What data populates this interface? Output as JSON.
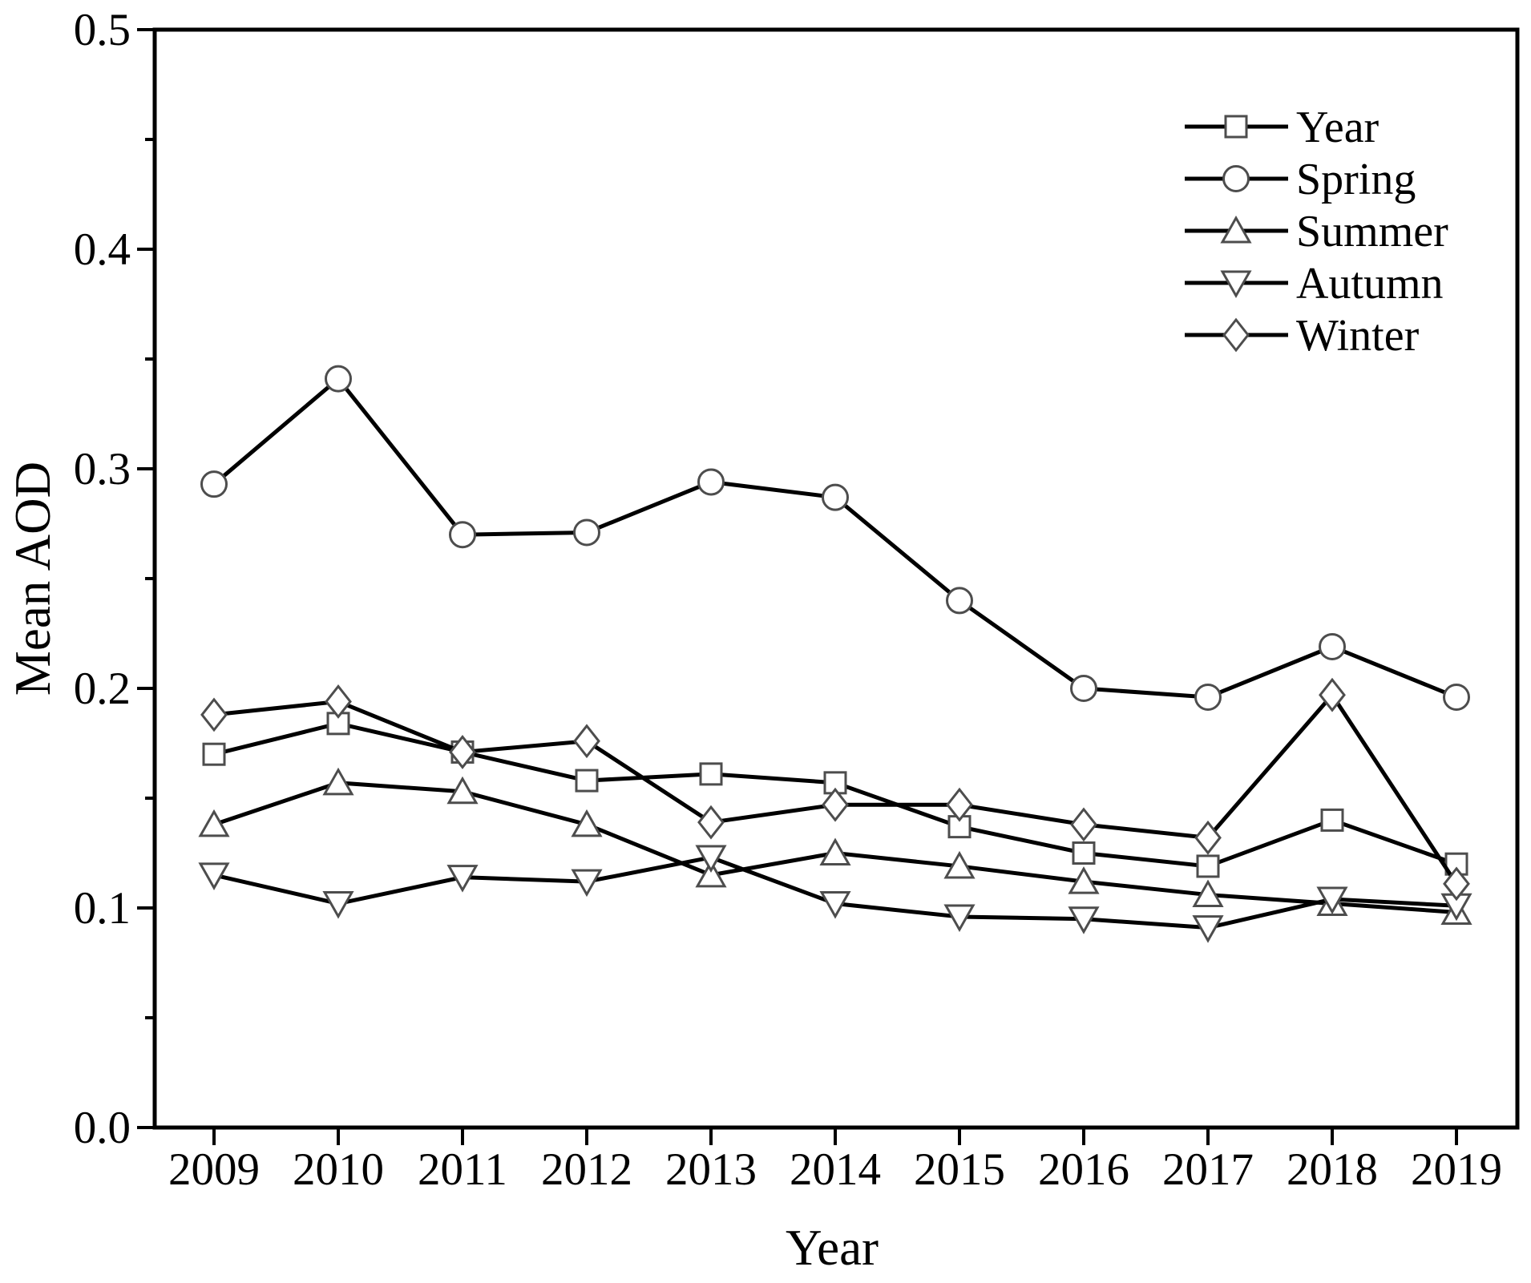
{
  "figure": {
    "background": "#ffffff",
    "line_color": "#000000",
    "marker_fill": "#ffffff",
    "marker_edge_color": "#4d4d4d",
    "text_color": "#000000"
  },
  "chart_data": {
    "type": "line",
    "title": "",
    "xlabel": "Year",
    "ylabel": "Mean AOD",
    "x": [
      2009,
      2010,
      2011,
      2012,
      2013,
      2014,
      2015,
      2016,
      2017,
      2018,
      2019
    ],
    "x_tick_labels": [
      "2009",
      "2010",
      "2011",
      "2012",
      "2013",
      "2014",
      "2015",
      "2016",
      "2017",
      "2018",
      "2019"
    ],
    "ylim": [
      0.0,
      0.5
    ],
    "y_major_ticks": [
      0.0,
      0.1,
      0.2,
      0.3,
      0.4,
      0.5
    ],
    "y_tick_labels": [
      "0.0",
      "0.1",
      "0.2",
      "0.3",
      "0.4",
      "0.5"
    ],
    "y_minor_ticks": [
      0.05,
      0.15,
      0.25,
      0.35,
      0.45
    ],
    "grid": false,
    "legend_position": "upper-right-inside",
    "legend_frame": false,
    "series": [
      {
        "name": "Year",
        "marker": "square",
        "values": [
          0.17,
          0.184,
          0.171,
          0.158,
          0.161,
          0.157,
          0.137,
          0.125,
          0.119,
          0.14,
          0.12
        ]
      },
      {
        "name": "Spring",
        "marker": "circle",
        "values": [
          0.293,
          0.341,
          0.27,
          0.271,
          0.294,
          0.287,
          0.24,
          0.2,
          0.196,
          0.219,
          0.196
        ]
      },
      {
        "name": "Summer",
        "marker": "triangle-up",
        "values": [
          0.138,
          0.157,
          0.153,
          0.138,
          0.115,
          0.125,
          0.119,
          0.112,
          0.106,
          0.102,
          0.098
        ]
      },
      {
        "name": "Autumn",
        "marker": "triangle-down",
        "values": [
          0.115,
          0.102,
          0.114,
          0.112,
          0.123,
          0.102,
          0.096,
          0.095,
          0.091,
          0.104,
          0.101
        ]
      },
      {
        "name": "Winter",
        "marker": "diamond",
        "values": [
          0.188,
          0.194,
          0.171,
          0.176,
          0.139,
          0.147,
          0.147,
          0.138,
          0.132,
          0.197,
          0.111
        ]
      }
    ]
  }
}
